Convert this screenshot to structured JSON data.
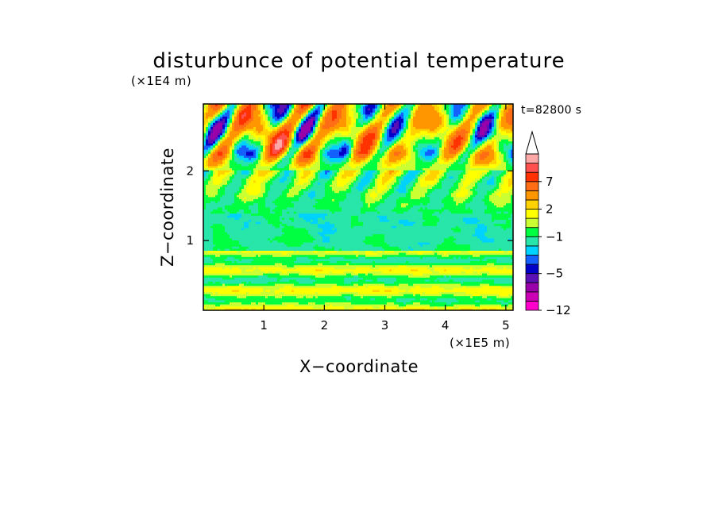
{
  "chart_data": {
    "type": "heatmap",
    "title": "disturbunce of potential temperature",
    "xlabel": "X−coordinate",
    "ylabel": "Z−coordinate",
    "x_unit": "(×1E5 m)",
    "y_unit": "(×1E4 m)",
    "time_label": "t=82800 s",
    "xlim": [
      0,
      5.12
    ],
    "ylim": [
      0,
      2.96
    ],
    "x_ticks": [
      1,
      2,
      3,
      4,
      5
    ],
    "x_tick_labels": [
      "1",
      "2",
      "3",
      "4",
      "5"
    ],
    "y_ticks": [
      1,
      2
    ],
    "y_tick_labels": [
      "1",
      "2"
    ],
    "colorbar": {
      "levels": [
        -12,
        -10,
        -8,
        -6,
        -5,
        -4,
        -3,
        -2,
        -1,
        0,
        1,
        2,
        3,
        5,
        7,
        9,
        11
      ],
      "tick_values": [
        -12,
        -5,
        -1,
        2,
        7
      ],
      "tick_labels": [
        "−12",
        "−5",
        "−1",
        "2",
        "7"
      ],
      "colors": [
        "#ff00cc",
        "#cc00b4",
        "#9900aa",
        "#5a10b4",
        "#0000c8",
        "#1460ff",
        "#00d2ff",
        "#28e6aa",
        "#00ff40",
        "#ccff33",
        "#ffff00",
        "#ffd200",
        "#ff9600",
        "#ff6e14",
        "#ff3200",
        "#ff5050",
        "#ffa8a8"
      ],
      "extend": "max"
    },
    "features": {
      "upper_anomaly_z": [
        2.0,
        2.96
      ],
      "cool_band_z": [
        0.85,
        1.4
      ],
      "surface_band_z": [
        0.0,
        0.85
      ]
    }
  }
}
